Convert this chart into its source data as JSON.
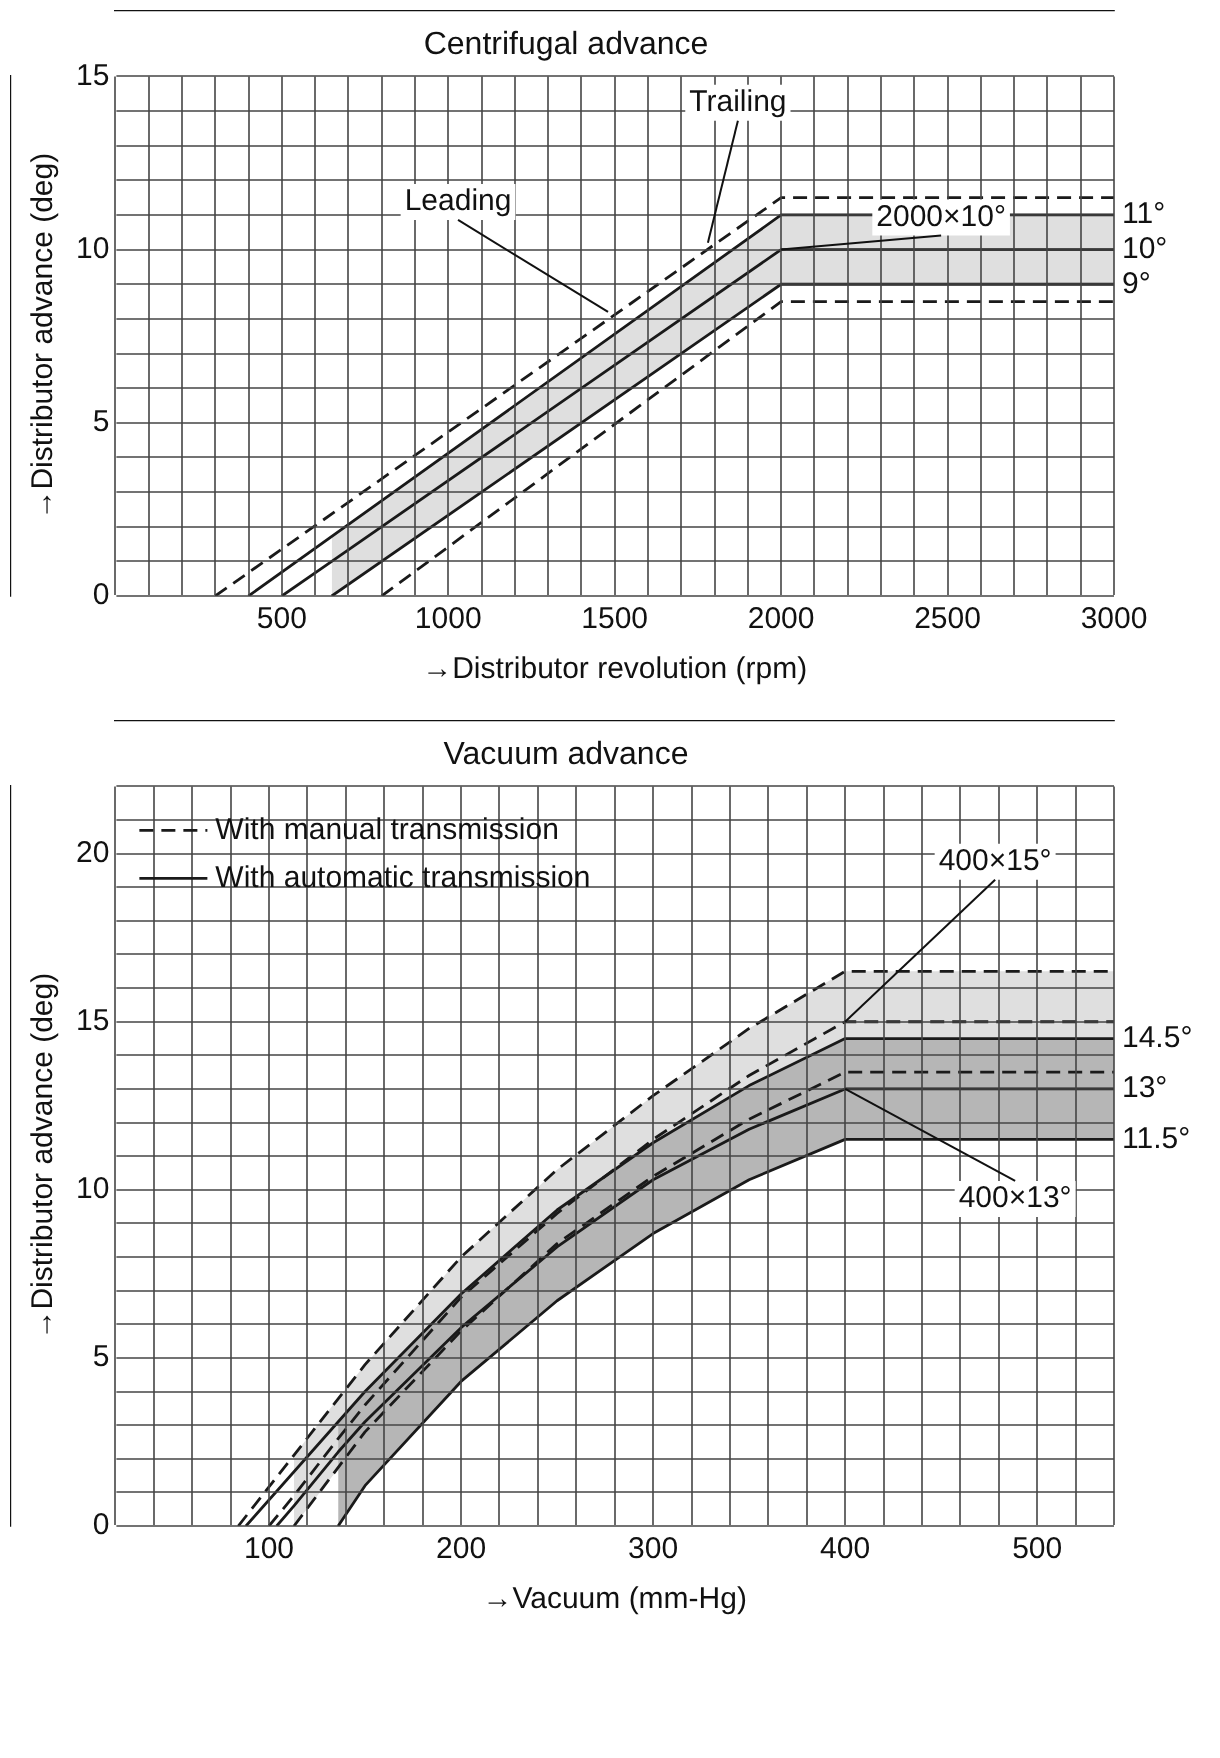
{
  "chart_data": [
    {
      "type": "line",
      "title": "Centrifugal advance",
      "xlabel": "→Distributor revolution (rpm)",
      "ylabel": "→Distributor advance (deg)",
      "xlim": [
        0,
        3000
      ],
      "xticks": [
        {
          "value": 0,
          "label": null
        },
        {
          "value": 100,
          "label": null
        },
        {
          "value": 200,
          "label": null
        },
        {
          "value": 300,
          "label": null
        },
        {
          "value": 400,
          "label": null
        },
        500,
        {
          "value": 600,
          "label": null
        },
        {
          "value": 700,
          "label": null
        },
        {
          "value": 800,
          "label": null
        },
        {
          "value": 900,
          "label": null
        },
        1000,
        {
          "value": 1100,
          "label": null
        },
        {
          "value": 1200,
          "label": null
        },
        {
          "value": 1300,
          "label": null
        },
        {
          "value": 1400,
          "label": null
        },
        1500,
        {
          "value": 1600,
          "label": null
        },
        {
          "value": 1700,
          "label": null
        },
        {
          "value": 1800,
          "label": null
        },
        {
          "value": 1900,
          "label": null
        },
        2000,
        {
          "value": 2100,
          "label": null
        },
        {
          "value": 2200,
          "label": null
        },
        {
          "value": 2300,
          "label": null
        },
        {
          "value": 2400,
          "label": null
        },
        2500,
        {
          "value": 2600,
          "label": null
        },
        {
          "value": 2700,
          "label": null
        },
        {
          "value": 2800,
          "label": null
        },
        {
          "value": 2900,
          "label": null
        },
        3000
      ],
      "ylim": [
        0,
        15
      ],
      "yticks": [
        0,
        {
          "value": 1,
          "label": null
        },
        {
          "value": 2,
          "label": null
        },
        {
          "value": 3,
          "label": null
        },
        {
          "value": 4,
          "label": null
        },
        5,
        {
          "value": 6,
          "label": null
        },
        {
          "value": 7,
          "label": null
        },
        {
          "value": 8,
          "label": null
        },
        {
          "value": 9,
          "label": null
        },
        10,
        {
          "value": 11,
          "label": null
        },
        {
          "value": 12,
          "label": null
        },
        {
          "value": 13,
          "label": null
        },
        {
          "value": 14,
          "label": null
        },
        15
      ],
      "grid": true,
      "series": [
        {
          "color": "#1a1a1a",
          "line_style": "dashed",
          "x": [
            300,
            2000,
            3000
          ],
          "values": [
            0,
            11.5,
            11.5
          ]
        },
        {
          "color": "#1a1a1a",
          "line_style": "solid",
          "x": [
            400,
            2000,
            3000
          ],
          "values": [
            0,
            11,
            11
          ]
        },
        {
          "color": "#1a1a1a",
          "line_style": "solid",
          "x": [
            500,
            650,
            2000,
            3000
          ],
          "values": [
            0,
            1,
            10,
            10
          ],
          "upper": [
            null,
            1.72,
            11,
            11
          ],
          "lower": [
            null,
            0,
            9,
            9
          ]
        },
        {
          "color": "#1a1a1a",
          "line_style": "solid",
          "x": [
            650,
            2000,
            3000
          ],
          "values": [
            0,
            9,
            9
          ]
        },
        {
          "color": "#1a1a1a",
          "line_style": "dashed",
          "x": [
            800,
            2000,
            3000
          ],
          "values": [
            0,
            8.5,
            8.5
          ]
        }
      ],
      "annotations": [
        {
          "text": "Leading",
          "x": 1480,
          "y": 8.2
        },
        {
          "text": "Trailing",
          "x": 1780,
          "y": 10.2
        },
        {
          "text": "2000×10°",
          "x": 2000,
          "y": 10
        },
        {
          "text": "11°",
          "x": 3000,
          "y": 11
        },
        {
          "text": "10°",
          "x": 3000,
          "y": 10
        },
        {
          "text": "9°",
          "x": 3000,
          "y": 9
        }
      ]
    },
    {
      "type": "line",
      "title": "Vacuum advance",
      "xlabel": "→Vacuum (mm-Hg)",
      "ylabel": "→Distributor advance (deg)",
      "xlim": [
        20,
        540
      ],
      "xticks": [
        {
          "value": 20,
          "label": null
        },
        {
          "value": 40,
          "label": null
        },
        {
          "value": 60,
          "label": null
        },
        {
          "value": 80,
          "label": null
        },
        100,
        {
          "value": 120,
          "label": null
        },
        {
          "value": 140,
          "label": null
        },
        {
          "value": 160,
          "label": null
        },
        {
          "value": 180,
          "label": null
        },
        200,
        {
          "value": 220,
          "label": null
        },
        {
          "value": 240,
          "label": null
        },
        {
          "value": 260,
          "label": null
        },
        {
          "value": 280,
          "label": null
        },
        300,
        {
          "value": 320,
          "label": null
        },
        {
          "value": 340,
          "label": null
        },
        {
          "value": 360,
          "label": null
        },
        {
          "value": 380,
          "label": null
        },
        400,
        {
          "value": 420,
          "label": null
        },
        {
          "value": 440,
          "label": null
        },
        {
          "value": 460,
          "label": null
        },
        {
          "value": 480,
          "label": null
        },
        500,
        {
          "value": 520,
          "label": null
        },
        {
          "value": 540,
          "label": null
        }
      ],
      "ylim": [
        0,
        22
      ],
      "yticks": [
        0,
        {
          "value": 1,
          "label": null
        },
        {
          "value": 2,
          "label": null
        },
        {
          "value": 3,
          "label": null
        },
        {
          "value": 4,
          "label": null
        },
        5,
        {
          "value": 6,
          "label": null
        },
        {
          "value": 7,
          "label": null
        },
        {
          "value": 8,
          "label": null
        },
        {
          "value": 9,
          "label": null
        },
        10,
        {
          "value": 11,
          "label": null
        },
        {
          "value": 12,
          "label": null
        },
        {
          "value": 13,
          "label": null
        },
        {
          "value": 14,
          "label": null
        },
        15,
        {
          "value": 16,
          "label": null
        },
        {
          "value": 17,
          "label": null
        },
        {
          "value": 18,
          "label": null
        },
        {
          "value": 19,
          "label": null
        },
        20,
        {
          "value": 21,
          "label": null
        },
        {
          "value": 22,
          "label": null
        }
      ],
      "grid": true,
      "legend": "top left",
      "series": [
        {
          "color": "#1a1a1a",
          "line_style": "dashed",
          "x": [
            84,
            150,
            200,
            250,
            300,
            350,
            400,
            540
          ],
          "values": [
            0,
            4.8,
            8.0,
            10.6,
            12.8,
            14.8,
            16.5,
            16.5
          ]
        },
        {
          "name": "With manual transmission",
          "color": "#1a1a1a",
          "line_style": "dashed",
          "x": [
            100,
            113,
            136,
            150,
            200,
            250,
            300,
            350,
            400,
            540
          ],
          "values": [
            0,
            0.9,
            2.6,
            3.6,
            6.8,
            9.3,
            11.5,
            13.4,
            15,
            15
          ],
          "upper": [
            null,
            2.1,
            3.8,
            4.8,
            8.0,
            10.6,
            12.8,
            14.8,
            16.5,
            16.5
          ],
          "lower": [
            null,
            0,
            1.7,
            2.8,
            5.8,
            8.4,
            10.4,
            12.1,
            13.5,
            13.5
          ]
        },
        {
          "color": "#1a1a1a",
          "line_style": "dashed",
          "x": [
            113,
            150,
            200,
            250,
            300,
            350,
            400,
            540
          ],
          "values": [
            0,
            2.8,
            5.8,
            8.4,
            10.4,
            12.1,
            13.5,
            13.5
          ]
        },
        {
          "color": "#1a1a1a",
          "line_style": "solid",
          "x": [
            88,
            150,
            200,
            250,
            300,
            350,
            400,
            540
          ],
          "values": [
            0,
            4.0,
            6.9,
            9.4,
            11.4,
            13.1,
            14.5,
            14.5
          ]
        },
        {
          "name": "With automatic transmission",
          "color": "#1a1a1a",
          "line_style": "solid",
          "x": [
            104,
            113,
            136,
            150,
            200,
            250,
            300,
            350,
            400,
            540
          ],
          "values": [
            0,
            0.6,
            2.2,
            3.1,
            5.9,
            8.3,
            10.3,
            11.8,
            13,
            13
          ],
          "upper": [
            null,
            null,
            3.1,
            4.0,
            6.9,
            9.4,
            11.4,
            13.1,
            14.5,
            14.5
          ],
          "lower": [
            null,
            null,
            0,
            1.2,
            4.3,
            6.7,
            8.7,
            10.3,
            11.5,
            11.5
          ]
        },
        {
          "color": "#1a1a1a",
          "line_style": "solid",
          "x": [
            136,
            150,
            200,
            250,
            300,
            350,
            400,
            540
          ],
          "values": [
            0,
            1.2,
            4.3,
            6.7,
            8.7,
            10.3,
            11.5,
            11.5
          ]
        }
      ],
      "annotations": [
        {
          "text": "400×15°",
          "x": 400,
          "y": 15
        },
        {
          "text": "400×13°",
          "x": 400,
          "y": 13
        },
        {
          "text": "14.5°",
          "x": 540,
          "y": 14.5
        },
        {
          "text": "13°",
          "x": 540,
          "y": 13
        },
        {
          "text": "11.5°",
          "x": 540,
          "y": 11.5
        }
      ]
    }
  ]
}
